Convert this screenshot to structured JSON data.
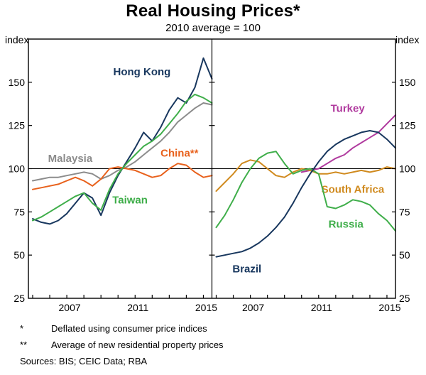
{
  "page": {
    "title": "Real Housing Prices*",
    "subtitle": "2010 average = 100"
  },
  "axis": {
    "unit_left": "index",
    "unit_right": "index",
    "ylim": [
      25,
      175
    ],
    "ytick_labels": [
      25,
      50,
      75,
      100,
      125,
      150
    ],
    "baseline": 100,
    "xlim": [
      2004.75,
      2015.5
    ],
    "year_ticks": [
      2005,
      2006,
      2007,
      2008,
      2009,
      2010,
      2011,
      2012,
      2013,
      2014,
      2015
    ],
    "year_labels": [
      2007,
      2011,
      2015
    ],
    "axis_color": "#000000",
    "baseline_color": "#000000"
  },
  "footnotes": [
    {
      "marker": "*",
      "text": "Deflated using consumer price indices"
    },
    {
      "marker": "**",
      "text": "Average of new residential property prices"
    }
  ],
  "sources_line": "Sources:  BIS; CEIC Data; RBA",
  "chart_data": [
    {
      "type": "line",
      "panel": "left",
      "series": [
        {
          "name": "Hong Kong",
          "color": "#18375e",
          "label": {
            "text": "Hong Kong",
            "x": 2011.4,
            "y": 156
          },
          "x": [
            2005,
            2005.5,
            2006,
            2006.5,
            2007,
            2007.5,
            2008,
            2008.5,
            2009,
            2009.5,
            2010,
            2010.5,
            2011,
            2011.5,
            2012,
            2012.5,
            2013,
            2013.5,
            2014,
            2014.5,
            2015,
            2015.5
          ],
          "values": [
            71,
            69,
            68,
            70,
            74,
            80,
            86,
            83,
            73,
            86,
            96,
            104,
            112,
            121,
            116,
            124,
            134,
            141,
            138,
            147,
            164,
            152
          ]
        },
        {
          "name": "Malaysia",
          "color": "#8c8c8c",
          "label": {
            "text": "Malaysia",
            "x": 2007.2,
            "y": 106
          },
          "x": [
            2005,
            2005.5,
            2006,
            2006.5,
            2007,
            2007.5,
            2008,
            2008.5,
            2009,
            2009.5,
            2010,
            2010.5,
            2011,
            2011.5,
            2012,
            2012.5,
            2013,
            2013.5,
            2014,
            2014.5,
            2015,
            2015.5
          ],
          "values": [
            93,
            94,
            95,
            95,
            96,
            97,
            98,
            97,
            94,
            96,
            99,
            101,
            104,
            108,
            112,
            116,
            121,
            127,
            131,
            135,
            138,
            137
          ]
        },
        {
          "name": "China",
          "color": "#e8611c",
          "label": {
            "text": "China**",
            "x": 2013.6,
            "y": 109
          },
          "x": [
            2005,
            2005.5,
            2006,
            2006.5,
            2007,
            2007.5,
            2008,
            2008.5,
            2009,
            2009.5,
            2010,
            2010.5,
            2011,
            2011.5,
            2012,
            2012.5,
            2013,
            2013.5,
            2014,
            2014.5,
            2015,
            2015.5
          ],
          "values": [
            88,
            89,
            90,
            91,
            93,
            95,
            93,
            90,
            94,
            100,
            101,
            100,
            99,
            97,
            95,
            96,
            100,
            103,
            102,
            98,
            95,
            96
          ]
        },
        {
          "name": "Taiwan",
          "color": "#3fae4a",
          "label": {
            "text": "Taiwan",
            "x": 2010.7,
            "y": 82
          },
          "x": [
            2005,
            2005.5,
            2006,
            2006.5,
            2007,
            2007.5,
            2008,
            2008.5,
            2009,
            2009.5,
            2010,
            2010.5,
            2011,
            2011.5,
            2012,
            2012.5,
            2013,
            2013.5,
            2014,
            2014.5,
            2015,
            2015.5
          ],
          "values": [
            70,
            72,
            75,
            78,
            81,
            84,
            86,
            80,
            76,
            88,
            97,
            103,
            108,
            113,
            116,
            120,
            126,
            132,
            139,
            143,
            141,
            138
          ]
        }
      ]
    },
    {
      "type": "line",
      "panel": "right",
      "series": [
        {
          "name": "Turkey",
          "color": "#b03a9e",
          "label": {
            "text": "Turkey",
            "x": 2012.7,
            "y": 135
          },
          "x": [
            2010,
            2010.5,
            2011,
            2011.5,
            2012,
            2012.5,
            2013,
            2013.5,
            2014,
            2014.5,
            2015,
            2015.5
          ],
          "values": [
            98,
            99,
            100,
            103,
            106,
            108,
            112,
            115,
            118,
            121,
            126,
            131
          ]
        },
        {
          "name": "South Africa",
          "color": "#d08a1e",
          "label": {
            "text": "South Africa",
            "x": 2013.0,
            "y": 88
          },
          "x": [
            2005,
            2005.5,
            2006,
            2006.5,
            2007,
            2007.5,
            2008,
            2008.5,
            2009,
            2009.5,
            2010,
            2010.5,
            2011,
            2011.5,
            2012,
            2012.5,
            2013,
            2013.5,
            2014,
            2014.5,
            2015,
            2015.5
          ],
          "values": [
            87,
            92,
            97,
            103,
            105,
            104,
            100,
            96,
            95,
            98,
            100,
            99,
            97,
            97,
            98,
            97,
            98,
            99,
            98,
            99,
            101,
            100
          ]
        },
        {
          "name": "Russia",
          "color": "#3fae4a",
          "label": {
            "text": "Russia",
            "x": 2012.6,
            "y": 68
          },
          "x": [
            2005,
            2005.5,
            2006,
            2006.5,
            2007,
            2007.5,
            2008,
            2008.5,
            2009,
            2009.5,
            2010,
            2010.5,
            2011,
            2011.5,
            2012,
            2012.5,
            2013,
            2013.5,
            2014,
            2014.5,
            2015,
            2015.5
          ],
          "values": [
            66,
            73,
            82,
            92,
            100,
            106,
            109,
            110,
            103,
            97,
            99,
            100,
            97,
            78,
            77,
            79,
            82,
            81,
            79,
            74,
            70,
            64
          ]
        },
        {
          "name": "Brazil",
          "color": "#18375e",
          "label": {
            "text": "Brazil",
            "x": 2006.8,
            "y": 42
          },
          "x": [
            2005,
            2005.5,
            2006,
            2006.5,
            2007,
            2007.5,
            2008,
            2008.5,
            2009,
            2009.5,
            2010,
            2010.5,
            2011,
            2011.5,
            2012,
            2012.5,
            2013,
            2013.5,
            2014,
            2014.5,
            2015,
            2015.5
          ],
          "values": [
            49,
            50,
            51,
            52,
            54,
            57,
            61,
            66,
            72,
            80,
            89,
            97,
            104,
            110,
            114,
            117,
            119,
            121,
            122,
            121,
            117,
            112
          ]
        }
      ]
    }
  ]
}
